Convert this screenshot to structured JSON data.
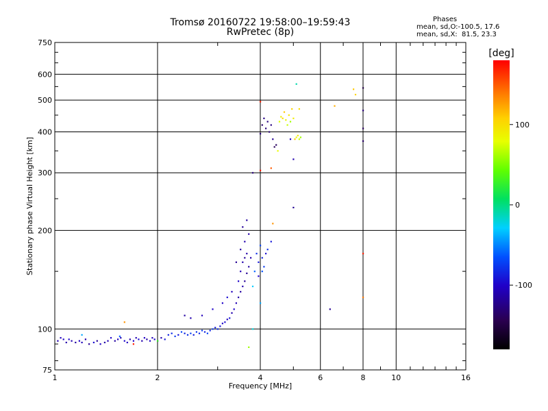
{
  "header": {
    "title_line1": "Tromsø 20160722 19:58:00–19:59:43",
    "title_line2": "RwPretec (8p)",
    "stats_title": "Phases",
    "stats_line1": "mean, sd,O:-100.5, 17.6",
    "stats_line2": "mean, sd,X:  81.5, 23.3"
  },
  "colorbar": {
    "label": "[deg]",
    "range": [
      -180,
      180
    ],
    "ticks": [
      100,
      0,
      -100
    ],
    "tick_labels": [
      "100",
      "0",
      "-100"
    ]
  },
  "chart_data": {
    "type": "scatter",
    "xlabel": "Frequency [MHz]",
    "ylabel": "Stationary phase Virtual Height [km]",
    "xscale": "log",
    "yscale": "log",
    "xlim": [
      1,
      16
    ],
    "ylim": [
      75,
      750
    ],
    "x_ticks": [
      1,
      2,
      4,
      6,
      8,
      10,
      16
    ],
    "y_ticks": [
      75,
      100,
      200,
      300,
      400,
      500,
      600,
      750
    ],
    "grid": true,
    "color_variable": "phase [deg]",
    "points": [
      [
        1.02,
        92,
        -110
      ],
      [
        1.04,
        94,
        -105
      ],
      [
        1.06,
        93,
        -100
      ],
      [
        1.08,
        91,
        -112
      ],
      [
        1.1,
        93,
        -98
      ],
      [
        1.12,
        92,
        -108
      ],
      [
        1.15,
        91,
        -115
      ],
      [
        1.18,
        92,
        -100
      ],
      [
        1.2,
        91,
        -105
      ],
      [
        1.23,
        93,
        -110
      ],
      [
        1.26,
        90,
        -120
      ],
      [
        1.3,
        91,
        -95
      ],
      [
        1.33,
        92,
        -118
      ],
      [
        1.36,
        90,
        -102
      ],
      [
        1.4,
        91,
        -112
      ],
      [
        1.43,
        92,
        -108
      ],
      [
        1.46,
        94,
        -100
      ],
      [
        1.5,
        92,
        -115
      ],
      [
        1.53,
        93,
        -105
      ],
      [
        1.56,
        94,
        -110
      ],
      [
        1.6,
        92,
        -98
      ],
      [
        1.63,
        91,
        -104
      ],
      [
        1.66,
        93,
        -112
      ],
      [
        1.7,
        92,
        -100
      ],
      [
        1.73,
        94,
        -108
      ],
      [
        1.76,
        93,
        -96
      ],
      [
        1.8,
        92,
        -110
      ],
      [
        1.83,
        94,
        -102
      ],
      [
        1.86,
        93,
        -115
      ],
      [
        1.9,
        92,
        -100
      ],
      [
        1.93,
        94,
        -106
      ],
      [
        1.96,
        93,
        -98
      ],
      [
        2.0,
        92,
        -104
      ],
      [
        2.05,
        94,
        -110
      ],
      [
        2.1,
        93,
        -90
      ],
      [
        2.15,
        96,
        -85
      ],
      [
        2.2,
        97,
        -80
      ],
      [
        2.25,
        95,
        -75
      ],
      [
        2.3,
        96,
        -90
      ],
      [
        2.35,
        98,
        -70
      ],
      [
        2.4,
        97,
        -85
      ],
      [
        2.45,
        96,
        -80
      ],
      [
        2.5,
        97,
        -72
      ],
      [
        2.55,
        96,
        -88
      ],
      [
        2.6,
        98,
        -78
      ],
      [
        2.65,
        97,
        -82
      ],
      [
        2.7,
        99,
        -76
      ],
      [
        2.75,
        98,
        -86
      ],
      [
        2.8,
        97,
        -70
      ],
      [
        2.85,
        99,
        -84
      ],
      [
        2.9,
        100,
        -74
      ],
      [
        2.95,
        101,
        -88
      ],
      [
        3.0,
        100,
        -80
      ],
      [
        3.05,
        102,
        -92
      ],
      [
        3.1,
        104,
        -100
      ],
      [
        3.15,
        105,
        -95
      ],
      [
        3.2,
        107,
        -105
      ],
      [
        3.25,
        108,
        -90
      ],
      [
        3.3,
        112,
        -110
      ],
      [
        3.35,
        115,
        -100
      ],
      [
        3.4,
        120,
        -108
      ],
      [
        3.45,
        125,
        -112
      ],
      [
        3.5,
        130,
        -115
      ],
      [
        3.55,
        135,
        -110
      ],
      [
        3.6,
        140,
        -118
      ],
      [
        3.65,
        148,
        -120
      ],
      [
        3.7,
        155,
        -115
      ],
      [
        3.75,
        165,
        -112
      ],
      [
        3.45,
        140,
        -100
      ],
      [
        3.5,
        150,
        -108
      ],
      [
        3.55,
        160,
        -110
      ],
      [
        3.6,
        165,
        -118
      ],
      [
        3.65,
        170,
        -112
      ],
      [
        3.4,
        160,
        -120
      ],
      [
        3.5,
        175,
        -115
      ],
      [
        3.6,
        185,
        -110
      ],
      [
        3.7,
        195,
        -112
      ],
      [
        3.55,
        205,
        -118
      ],
      [
        3.65,
        215,
        -115
      ],
      [
        3.3,
        130,
        -105
      ],
      [
        3.2,
        125,
        -95
      ],
      [
        3.1,
        120,
        -100
      ],
      [
        2.9,
        115,
        -100
      ],
      [
        2.7,
        110,
        -105
      ],
      [
        2.5,
        108,
        -110
      ],
      [
        2.4,
        110,
        -115
      ],
      [
        3.8,
        135,
        -30
      ],
      [
        3.85,
        150,
        -60
      ],
      [
        3.9,
        170,
        -80
      ],
      [
        3.95,
        160,
        -90
      ],
      [
        4.0,
        180,
        -70
      ],
      [
        4.05,
        165,
        -85
      ],
      [
        4.1,
        155,
        -75
      ],
      [
        4.15,
        170,
        -95
      ],
      [
        4.2,
        175,
        -80
      ],
      [
        4.3,
        185,
        -90
      ],
      [
        4.05,
        150,
        -65
      ],
      [
        3.95,
        145,
        -100
      ],
      [
        4.0,
        120,
        -40
      ],
      [
        3.8,
        100,
        -20
      ],
      [
        3.7,
        88,
        60
      ],
      [
        4.0,
        395,
        -130
      ],
      [
        4.05,
        420,
        -135
      ],
      [
        4.1,
        440,
        -125
      ],
      [
        4.15,
        410,
        -130
      ],
      [
        4.2,
        430,
        -128
      ],
      [
        4.25,
        400,
        -132
      ],
      [
        4.3,
        420,
        -126
      ],
      [
        4.35,
        380,
        -120
      ],
      [
        4.4,
        360,
        -140
      ],
      [
        4.45,
        365,
        -138
      ],
      [
        4.5,
        350,
        80
      ],
      [
        4.55,
        430,
        75
      ],
      [
        4.6,
        445,
        90
      ],
      [
        4.65,
        440,
        100
      ],
      [
        4.7,
        460,
        110
      ],
      [
        4.75,
        435,
        85
      ],
      [
        4.8,
        420,
        70
      ],
      [
        4.85,
        450,
        95
      ],
      [
        4.9,
        430,
        60
      ],
      [
        4.95,
        470,
        105
      ],
      [
        5.0,
        440,
        90
      ],
      [
        5.05,
        380,
        110
      ],
      [
        5.1,
        385,
        80
      ],
      [
        5.15,
        390,
        95
      ],
      [
        5.2,
        380,
        70
      ],
      [
        5.25,
        385,
        60
      ],
      [
        5.0,
        330,
        -110
      ],
      [
        5.0,
        235,
        -120
      ],
      [
        4.9,
        380,
        -100
      ],
      [
        4.3,
        310,
        150
      ],
      [
        4.0,
        495,
        170
      ],
      [
        4.0,
        305,
        170
      ],
      [
        4.35,
        210,
        130
      ],
      [
        3.8,
        300,
        -130
      ],
      [
        5.1,
        560,
        -10
      ],
      [
        5.2,
        470,
        100
      ],
      [
        6.4,
        115,
        -120
      ],
      [
        6.6,
        480,
        120
      ],
      [
        7.5,
        540,
        110
      ],
      [
        7.6,
        520,
        105
      ],
      [
        8.0,
        545,
        -150
      ],
      [
        8.0,
        465,
        -130
      ],
      [
        8.0,
        410,
        -140
      ],
      [
        8.0,
        375,
        -135
      ],
      [
        8.0,
        170,
        170
      ],
      [
        8.0,
        125,
        140
      ],
      [
        1.6,
        105,
        130
      ],
      [
        2.0,
        92,
        30
      ],
      [
        1.7,
        90,
        170
      ],
      [
        1.55,
        95,
        -60
      ],
      [
        1.2,
        96,
        -40
      ]
    ]
  }
}
